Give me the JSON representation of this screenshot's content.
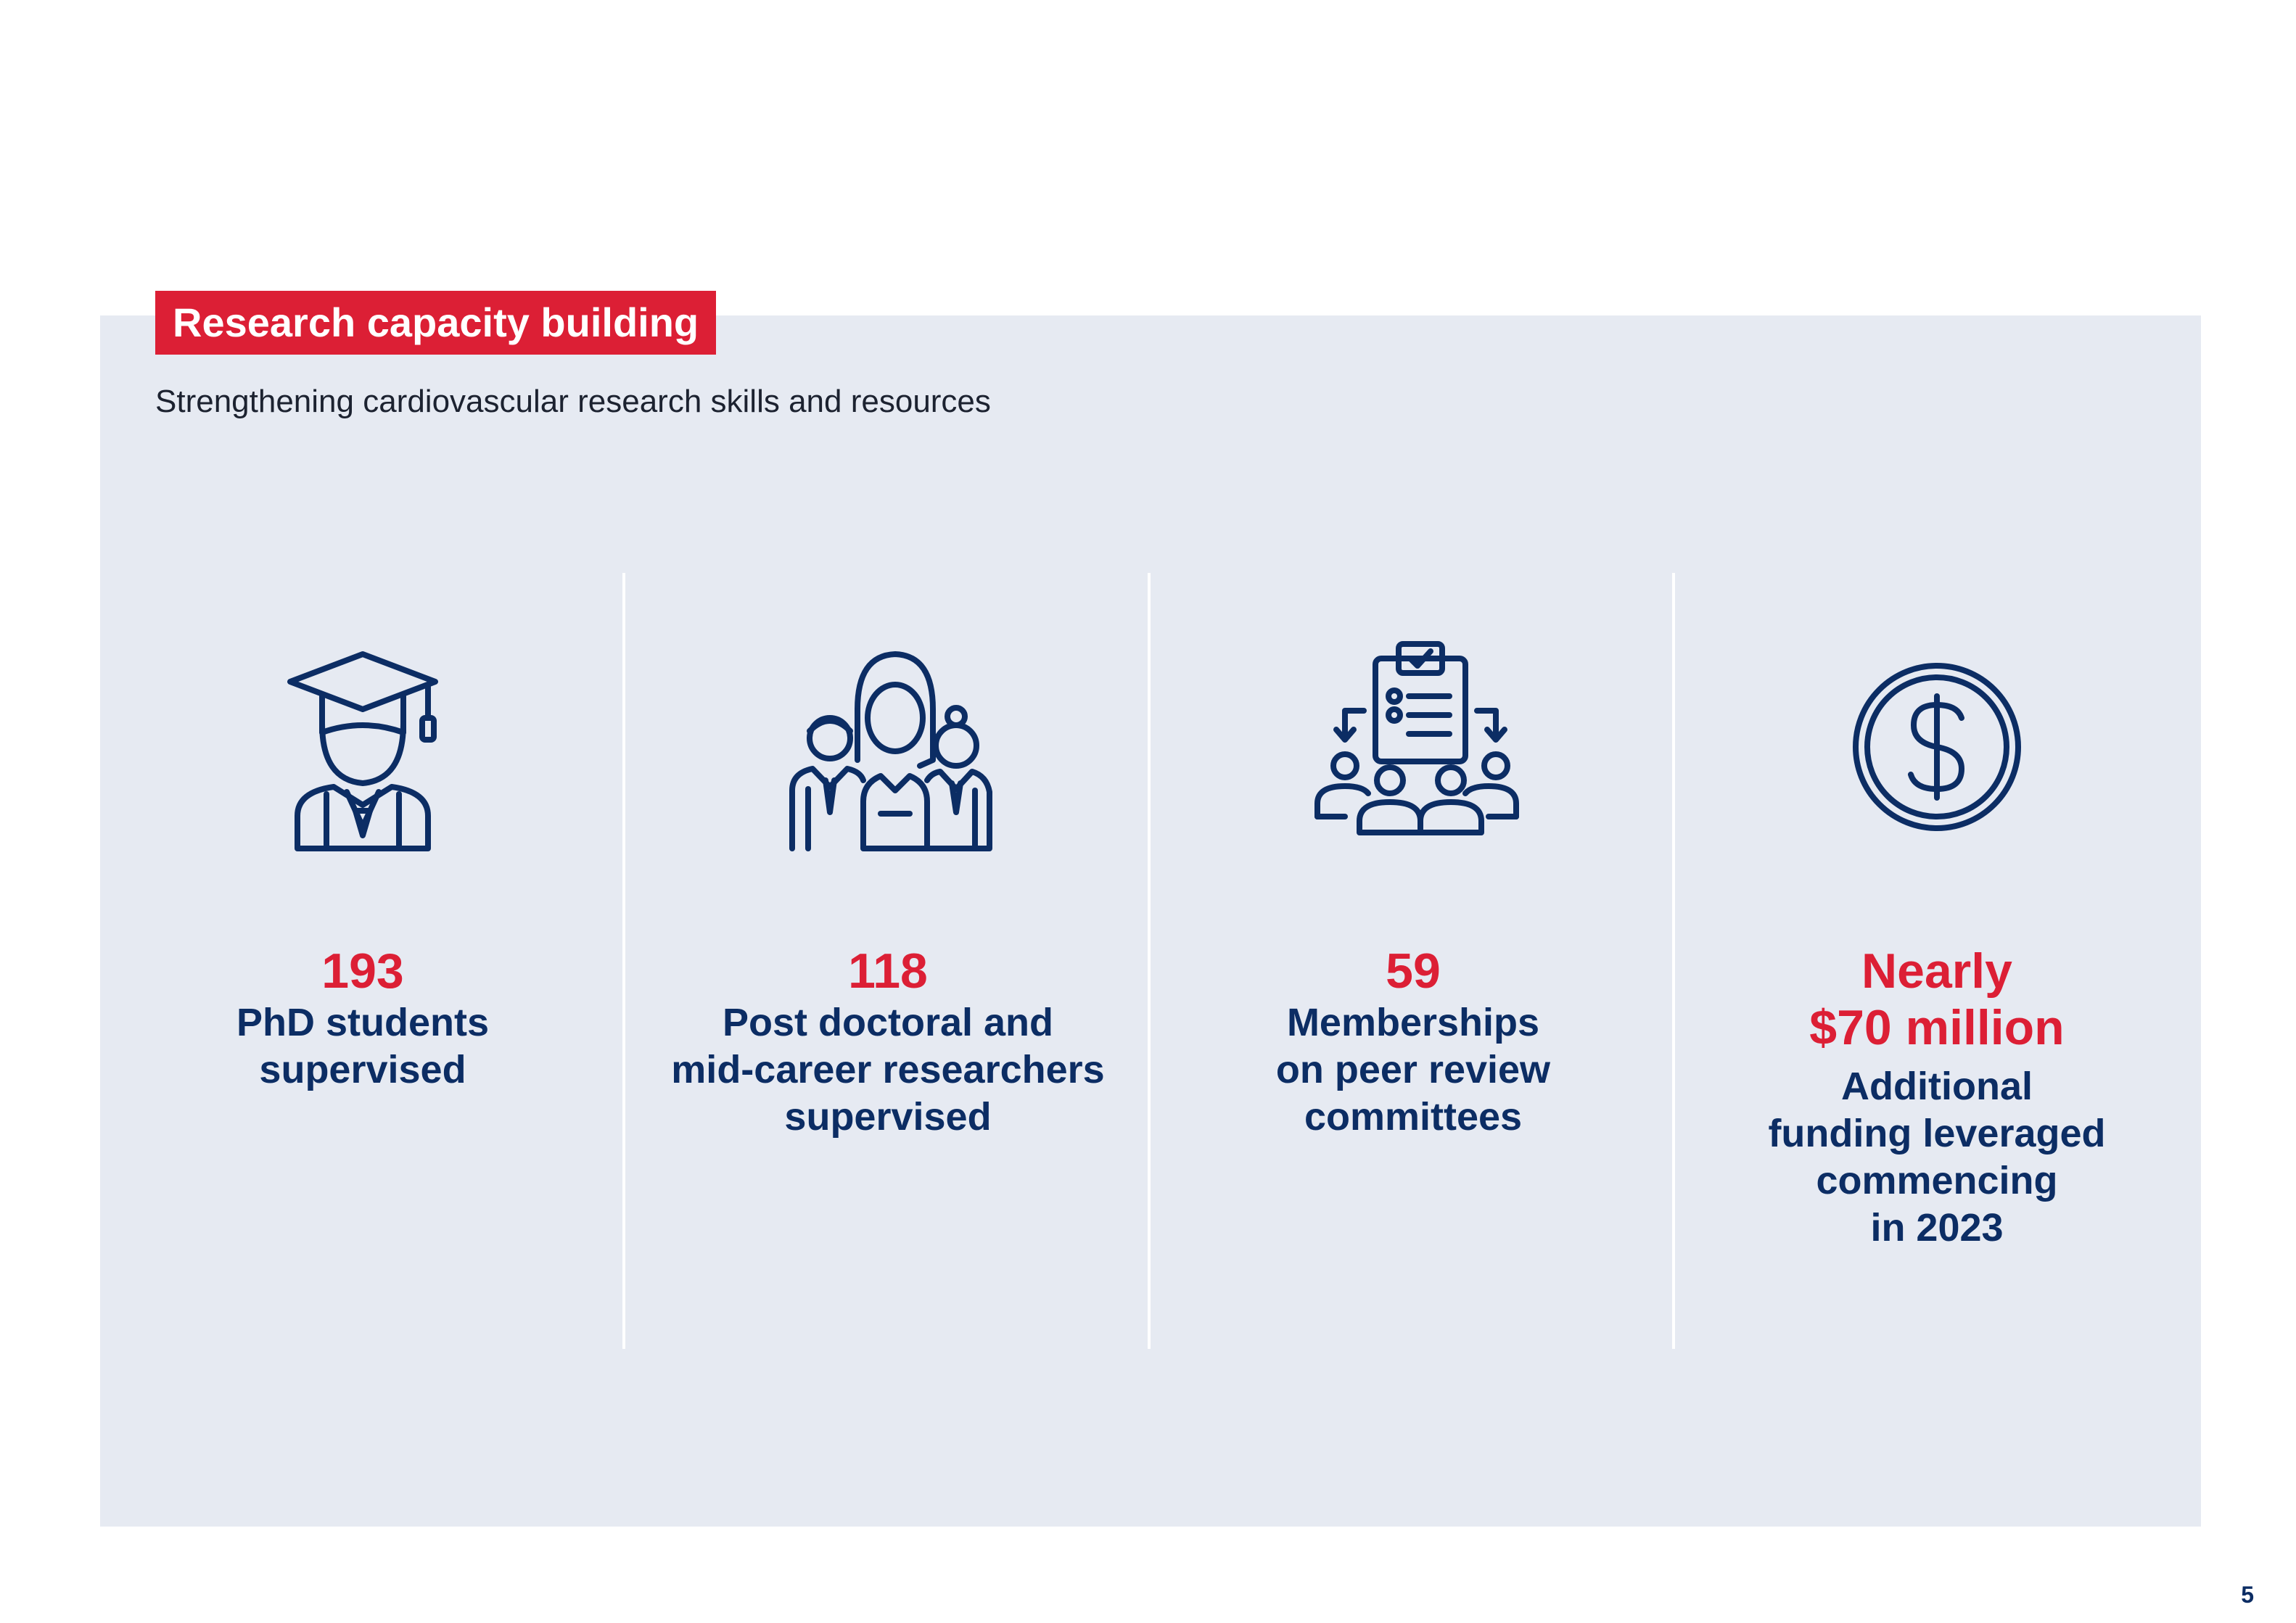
{
  "section": {
    "tag": "Research capacity building",
    "subtitle": "Strengthening cardiovascular research skills and resources"
  },
  "colors": {
    "accent_red": "#dc1f35",
    "navy": "#0c2d64",
    "panel_bg": "#e6eaf2"
  },
  "stats": [
    {
      "icon": "graduate-icon",
      "value": "193",
      "label_lines": [
        "PhD students",
        "supervised"
      ]
    },
    {
      "icon": "researchers-group-icon",
      "value": "118",
      "label_lines": [
        "Post doctoral and",
        "mid-career researchers",
        "supervised"
      ]
    },
    {
      "icon": "peer-review-committee-icon",
      "value": "59",
      "label_lines": [
        "Memberships",
        "on peer review",
        "committees"
      ]
    },
    {
      "icon": "dollar-coin-icon",
      "value_lines": [
        "Nearly",
        "$70 million"
      ],
      "label_lines": [
        "Additional",
        "funding leveraged",
        "commencing",
        "in 2023"
      ]
    }
  ],
  "page_number": "5"
}
